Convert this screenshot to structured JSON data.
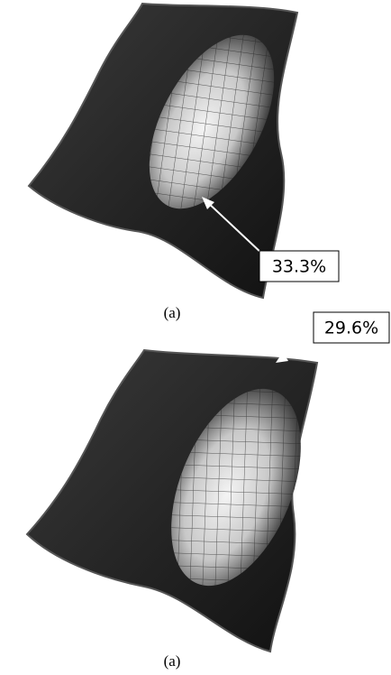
{
  "panels": [
    {
      "label": "33.3%",
      "caption": "(a)"
    },
    {
      "label": "29.6%",
      "caption": "(a)"
    }
  ]
}
